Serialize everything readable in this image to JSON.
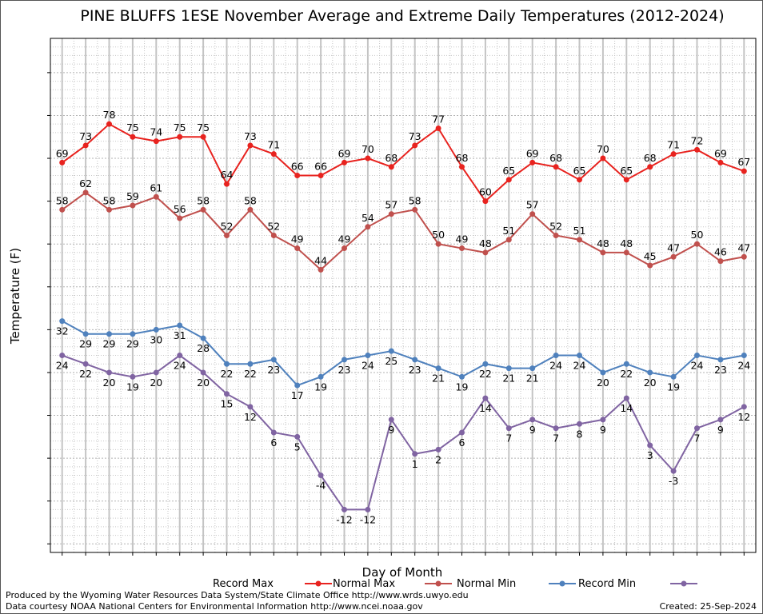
{
  "chart_data": {
    "type": "line",
    "title": "PINE BLUFFS 1ESE November Average and Extreme Daily Temperatures (2012-2024)",
    "xlabel": "Day of Month",
    "ylabel": "Temperature (F)",
    "x": [
      1,
      2,
      3,
      4,
      5,
      6,
      7,
      8,
      9,
      10,
      11,
      12,
      13,
      14,
      15,
      16,
      17,
      18,
      19,
      20,
      21,
      22,
      23,
      24,
      25,
      26,
      27,
      28,
      29,
      30
    ],
    "xlim": [
      0.5,
      30.5
    ],
    "ylim": [
      -22,
      98
    ],
    "yticks": [
      -20,
      -10,
      0,
      10,
      20,
      30,
      40,
      50,
      60,
      70,
      80,
      90
    ],
    "grid": true,
    "legend_position": "bottom",
    "series": [
      {
        "name": "Record Max",
        "color": "#e8231f",
        "values": [
          69,
          73,
          78,
          75,
          74,
          75,
          75,
          64,
          73,
          71,
          66,
          66,
          69,
          70,
          68,
          73,
          77,
          68,
          60,
          65,
          69,
          68,
          65,
          70,
          65,
          68,
          71,
          72,
          69,
          67
        ]
      },
      {
        "name": "Normal Max",
        "color": "#c0504d",
        "values": [
          58,
          62,
          58,
          59,
          61,
          56,
          58,
          52,
          58,
          52,
          49,
          44,
          49,
          54,
          57,
          58,
          50,
          49,
          48,
          51,
          57,
          52,
          51,
          48,
          48,
          45,
          47,
          50,
          46,
          47
        ]
      },
      {
        "name": "Normal Min",
        "color": "#4f81bd",
        "values": [
          32,
          29,
          29,
          29,
          30,
          31,
          28,
          22,
          22,
          23,
          17,
          19,
          23,
          24,
          25,
          23,
          21,
          19,
          22,
          21,
          21,
          24,
          24,
          20,
          22,
          20,
          19,
          24,
          23,
          24
        ]
      },
      {
        "name": "Record Min",
        "color": "#8064a2",
        "values": [
          24,
          22,
          20,
          19,
          20,
          24,
          20,
          15,
          12,
          6,
          5,
          -4,
          -12,
          -12,
          9,
          1,
          2,
          6,
          14,
          7,
          9,
          7,
          8,
          9,
          14,
          3,
          -3,
          7,
          9,
          12
        ]
      }
    ]
  },
  "footer": {
    "credit_line_1": "Produced by the Wyoming Water Resources Data System/State Climate Office http://www.wrds.uwyo.edu",
    "credit_line_2": "Data courtesy NOAA National Centers for Environmental Information http://www.ncei.noaa.gov",
    "created": "Created:  25-Sep-2024"
  }
}
